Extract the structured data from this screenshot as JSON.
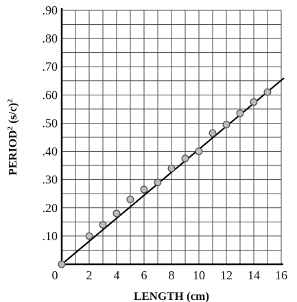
{
  "chart_data": {
    "type": "scatter",
    "title": "",
    "xlabel": "LENGTH (cm)",
    "ylabel": "PERIOD",
    "ylabel_sup": "2",
    "ylabel_unit": " (s/c)",
    "ylabel_unit_sup": "2",
    "xlim": [
      0,
      16
    ],
    "ylim": [
      0,
      0.9
    ],
    "grid": true,
    "x_major_ticks": [
      0,
      2,
      4,
      6,
      8,
      10,
      12,
      14,
      16
    ],
    "x_tick_labels": [
      "0",
      "2",
      "4",
      "6",
      "8",
      "10",
      "12",
      "14",
      "16"
    ],
    "y_major_ticks": [
      0.1,
      0.2,
      0.3,
      0.4,
      0.5,
      0.6,
      0.7,
      0.8,
      0.9
    ],
    "y_tick_labels": [
      ".10",
      ".20",
      ".30",
      ".40",
      ".50",
      ".60",
      ".70",
      ".80",
      ".90"
    ],
    "x_minor_step": 1,
    "y_minor_step": 0.05,
    "points": [
      {
        "x": 0,
        "y": 0
      },
      {
        "x": 2,
        "y": 0.1
      },
      {
        "x": 3,
        "y": 0.14
      },
      {
        "x": 4,
        "y": 0.18
      },
      {
        "x": 5,
        "y": 0.23
      },
      {
        "x": 6,
        "y": 0.265
      },
      {
        "x": 7,
        "y": 0.29
      },
      {
        "x": 8,
        "y": 0.34
      },
      {
        "x": 9,
        "y": 0.375
      },
      {
        "x": 10,
        "y": 0.4
      },
      {
        "x": 11,
        "y": 0.465
      },
      {
        "x": 12,
        "y": 0.495
      },
      {
        "x": 13,
        "y": 0.535
      },
      {
        "x": 14,
        "y": 0.575
      },
      {
        "x": 15,
        "y": 0.61
      }
    ],
    "fit_line": {
      "x": [
        0,
        16.2
      ],
      "y": [
        0,
        0.66
      ]
    },
    "colors": {
      "grid": "#444444",
      "line": "#000000",
      "marker_fill": "#bdbdbd",
      "marker_edge": "#555555"
    }
  }
}
